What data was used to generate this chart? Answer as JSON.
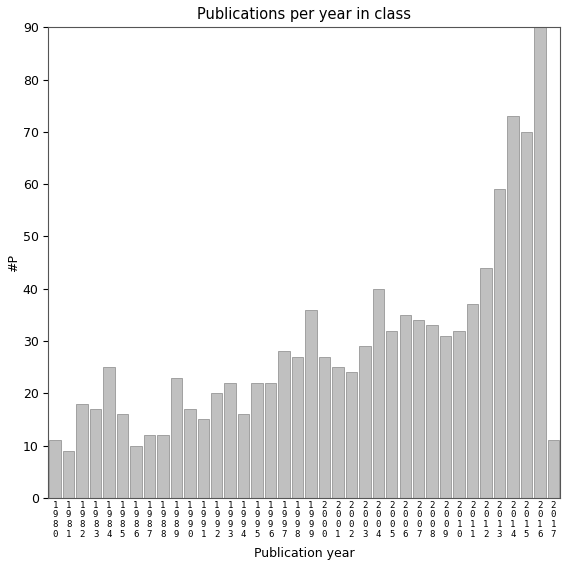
{
  "title": "Publications per year in class",
  "xlabel": "Publication year",
  "ylabel": "#P",
  "bar_color": "#c0c0c0",
  "edge_color": "#888888",
  "background_color": "#ffffff",
  "ylim": [
    0,
    90
  ],
  "yticks": [
    0,
    10,
    20,
    30,
    40,
    50,
    60,
    70,
    80,
    90
  ],
  "years": [
    1980,
    1981,
    1982,
    1983,
    1984,
    1985,
    1986,
    1987,
    1988,
    1989,
    1990,
    1991,
    1992,
    1993,
    1994,
    1995,
    1996,
    1997,
    1998,
    1999,
    2000,
    2001,
    2002,
    2003,
    2004,
    2005,
    2006,
    2007,
    2008,
    2009,
    2010,
    2011,
    2012,
    2013,
    2014,
    2015,
    2016,
    2017
  ],
  "values": [
    11,
    9,
    18,
    17,
    25,
    16,
    10,
    12,
    12,
    23,
    17,
    15,
    20,
    22,
    16,
    22,
    22,
    28,
    27,
    36,
    27,
    25,
    24,
    29,
    40,
    32,
    35,
    34,
    33,
    31,
    32,
    37,
    44,
    59,
    73,
    70,
    90,
    11
  ]
}
